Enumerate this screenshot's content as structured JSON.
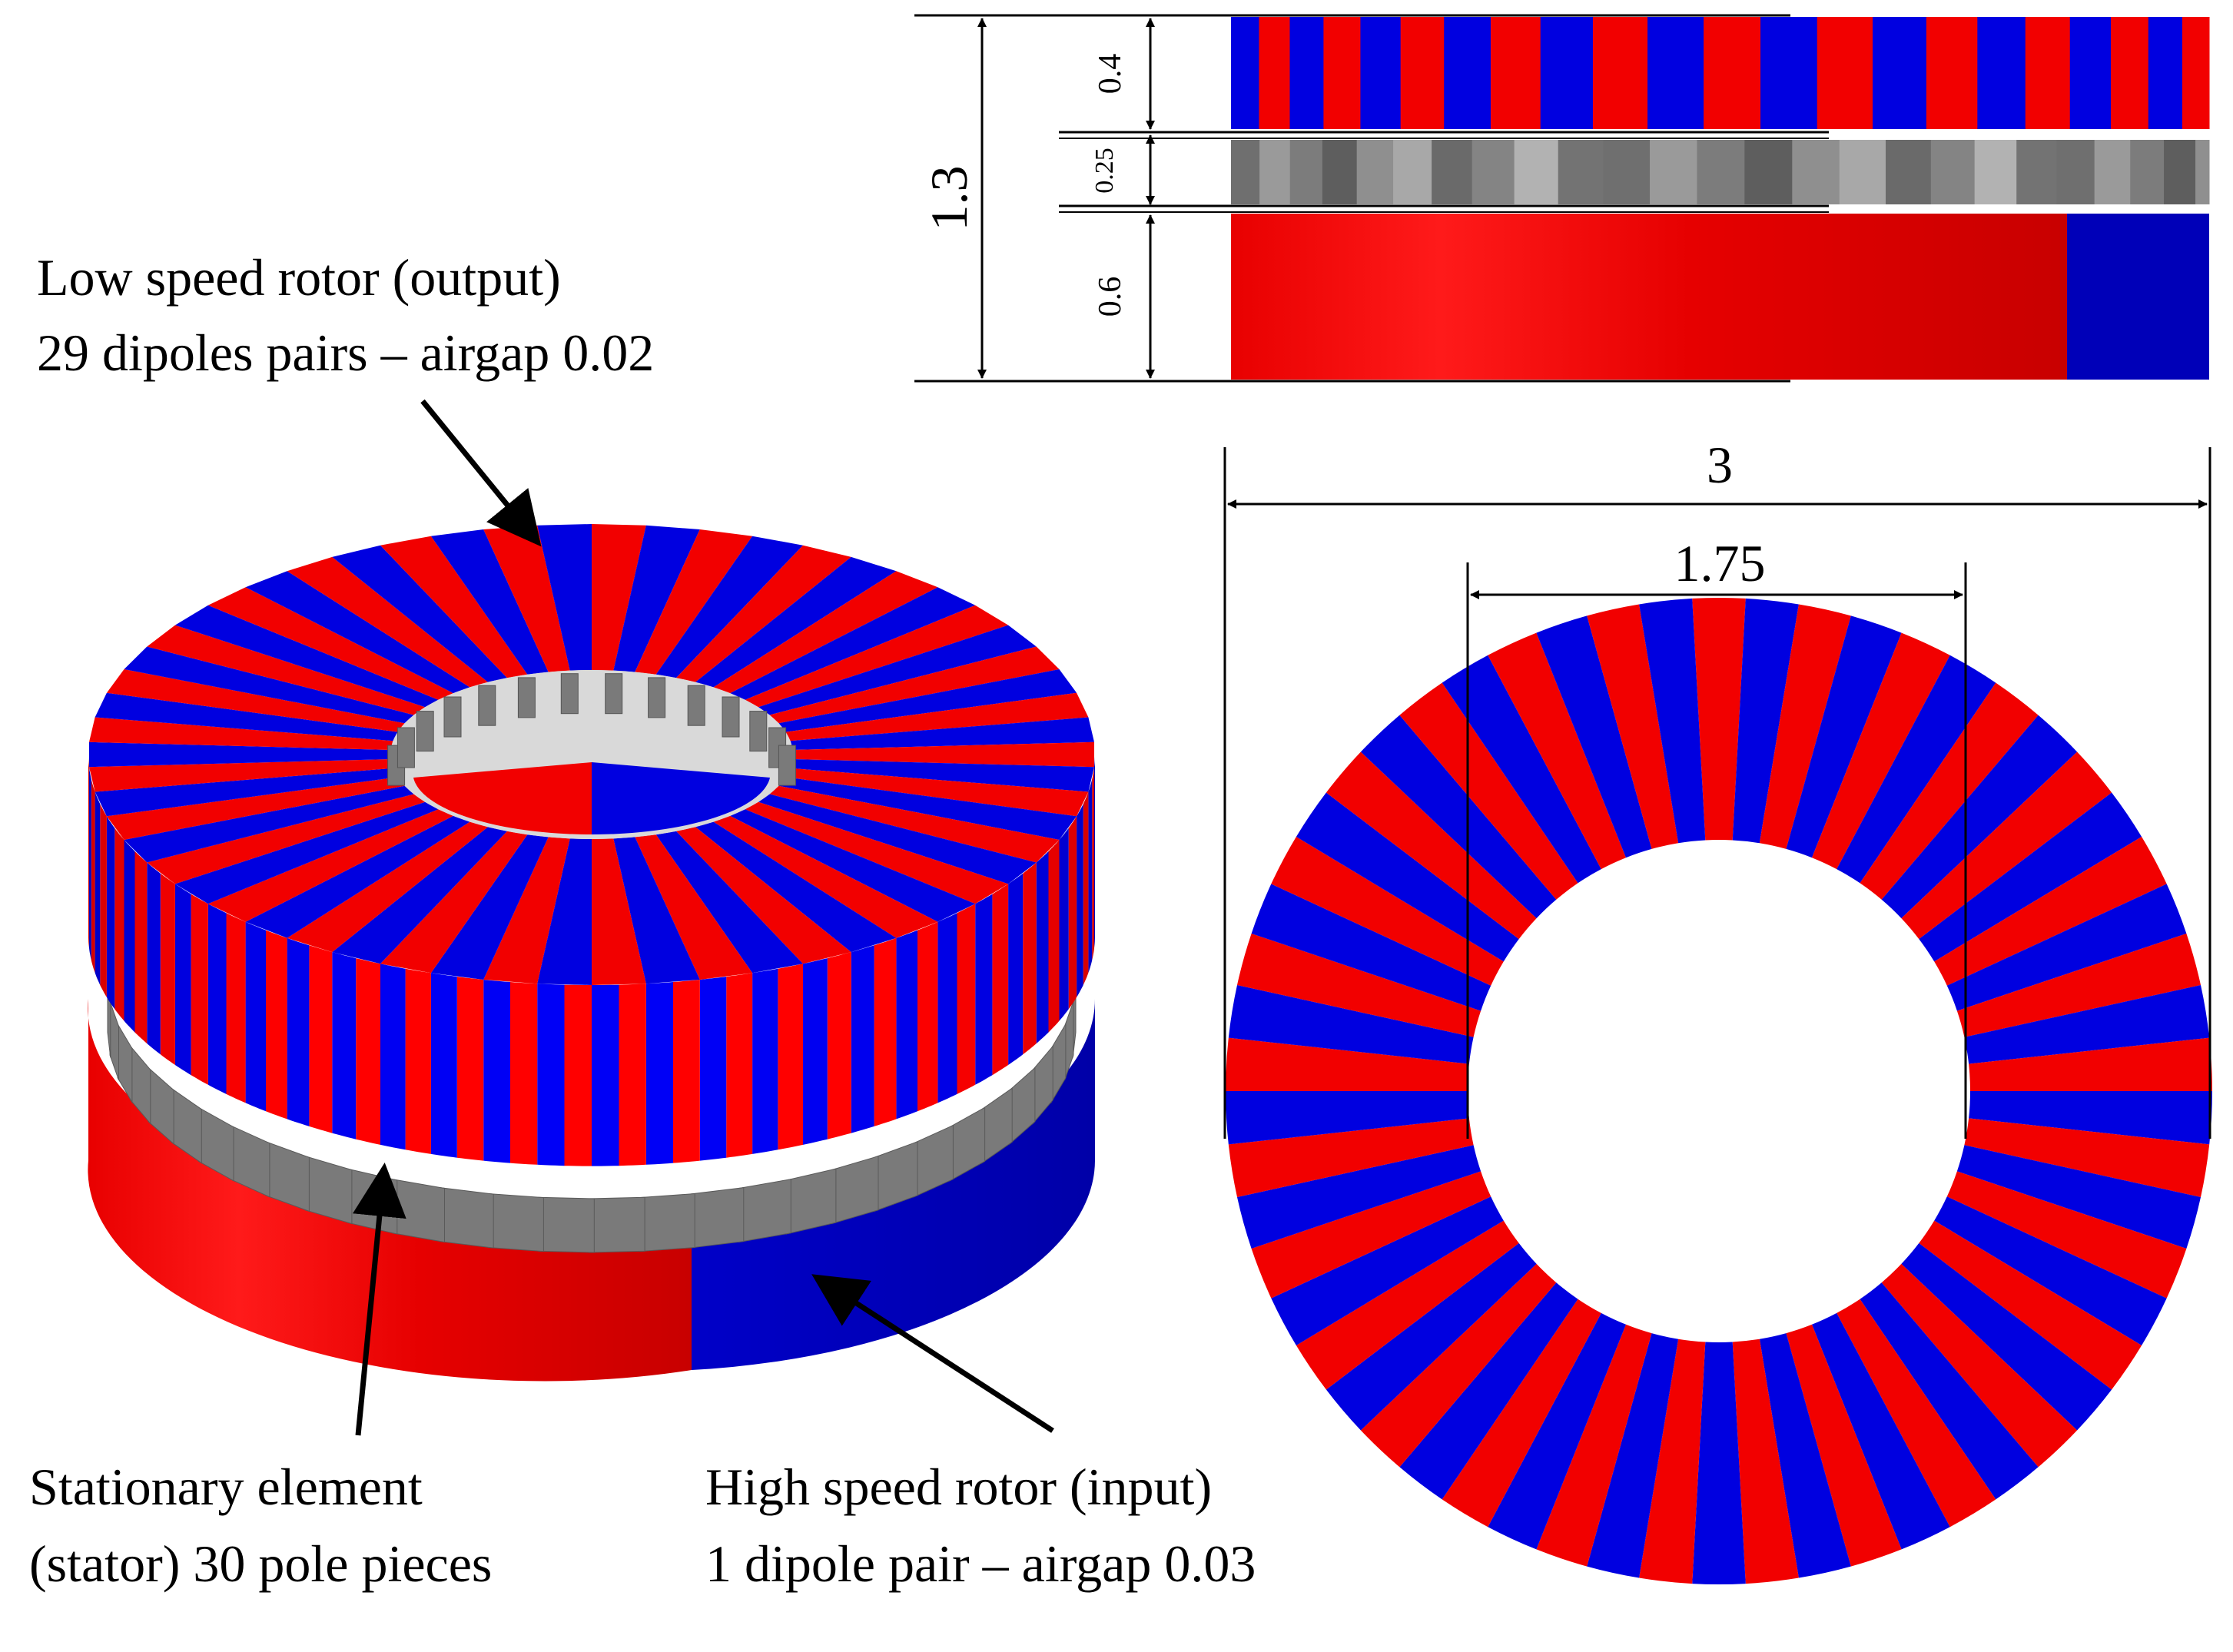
{
  "figure": {
    "labels": {
      "low_speed_rotor": {
        "line1": "Low speed rotor (output)",
        "line2": "29 dipoles pairs – airgap 0.02"
      },
      "stationary_element": {
        "line1": "Stationary element",
        "line2": "(stator) 30 pole pieces"
      },
      "high_speed_rotor": {
        "line1": "High speed rotor (input)",
        "line2": "1 dipole pair – airgap 0.03"
      }
    },
    "dimensions": {
      "total_height": "1.3",
      "low_rotor_height": "0.4",
      "stator_height": "0.25",
      "high_rotor_height": "0.6",
      "outer_diameter": "3",
      "inner_diameter": "1.75"
    },
    "counts": {
      "low_speed_dipole_pairs": 29,
      "stator_pole_pieces": 30,
      "high_speed_dipole_pairs": 1
    },
    "colors": {
      "red": "#f20000",
      "blue": "#0000e0",
      "gray": "#7a7a7a"
    }
  }
}
